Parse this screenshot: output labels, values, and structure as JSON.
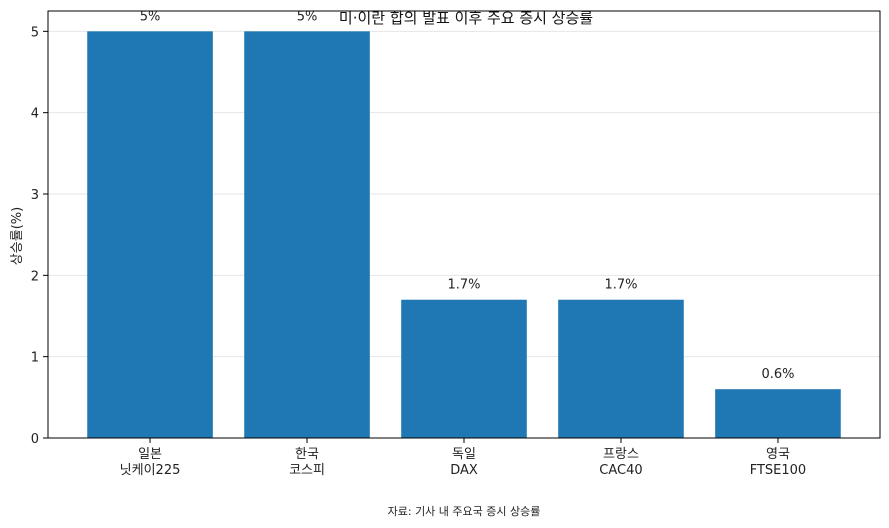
{
  "chart_data": {
    "type": "bar",
    "title": "미·이란 합의 발표 이후 주요 증시 상승률",
    "xlabel": "",
    "ylabel": "상승률(%)",
    "categories": [
      [
        "일본",
        "닛케이225"
      ],
      [
        "한국",
        "코스피"
      ],
      [
        "독일",
        "DAX"
      ],
      [
        "프랑스",
        "CAC40"
      ],
      [
        "영국",
        "FTSE100"
      ]
    ],
    "values": [
      5,
      5,
      1.7,
      1.7,
      0.6
    ],
    "data_labels": [
      "5%",
      "5%",
      "1.7%",
      "1.7%",
      "0.6%"
    ],
    "ylim": [
      0,
      5.25
    ],
    "yticks": [
      0,
      1,
      2,
      3,
      4,
      5
    ],
    "grid": "horizontal",
    "bar_color": "#1f77b4",
    "note": "자료: 기사 내 주요국 증시 상승률"
  }
}
